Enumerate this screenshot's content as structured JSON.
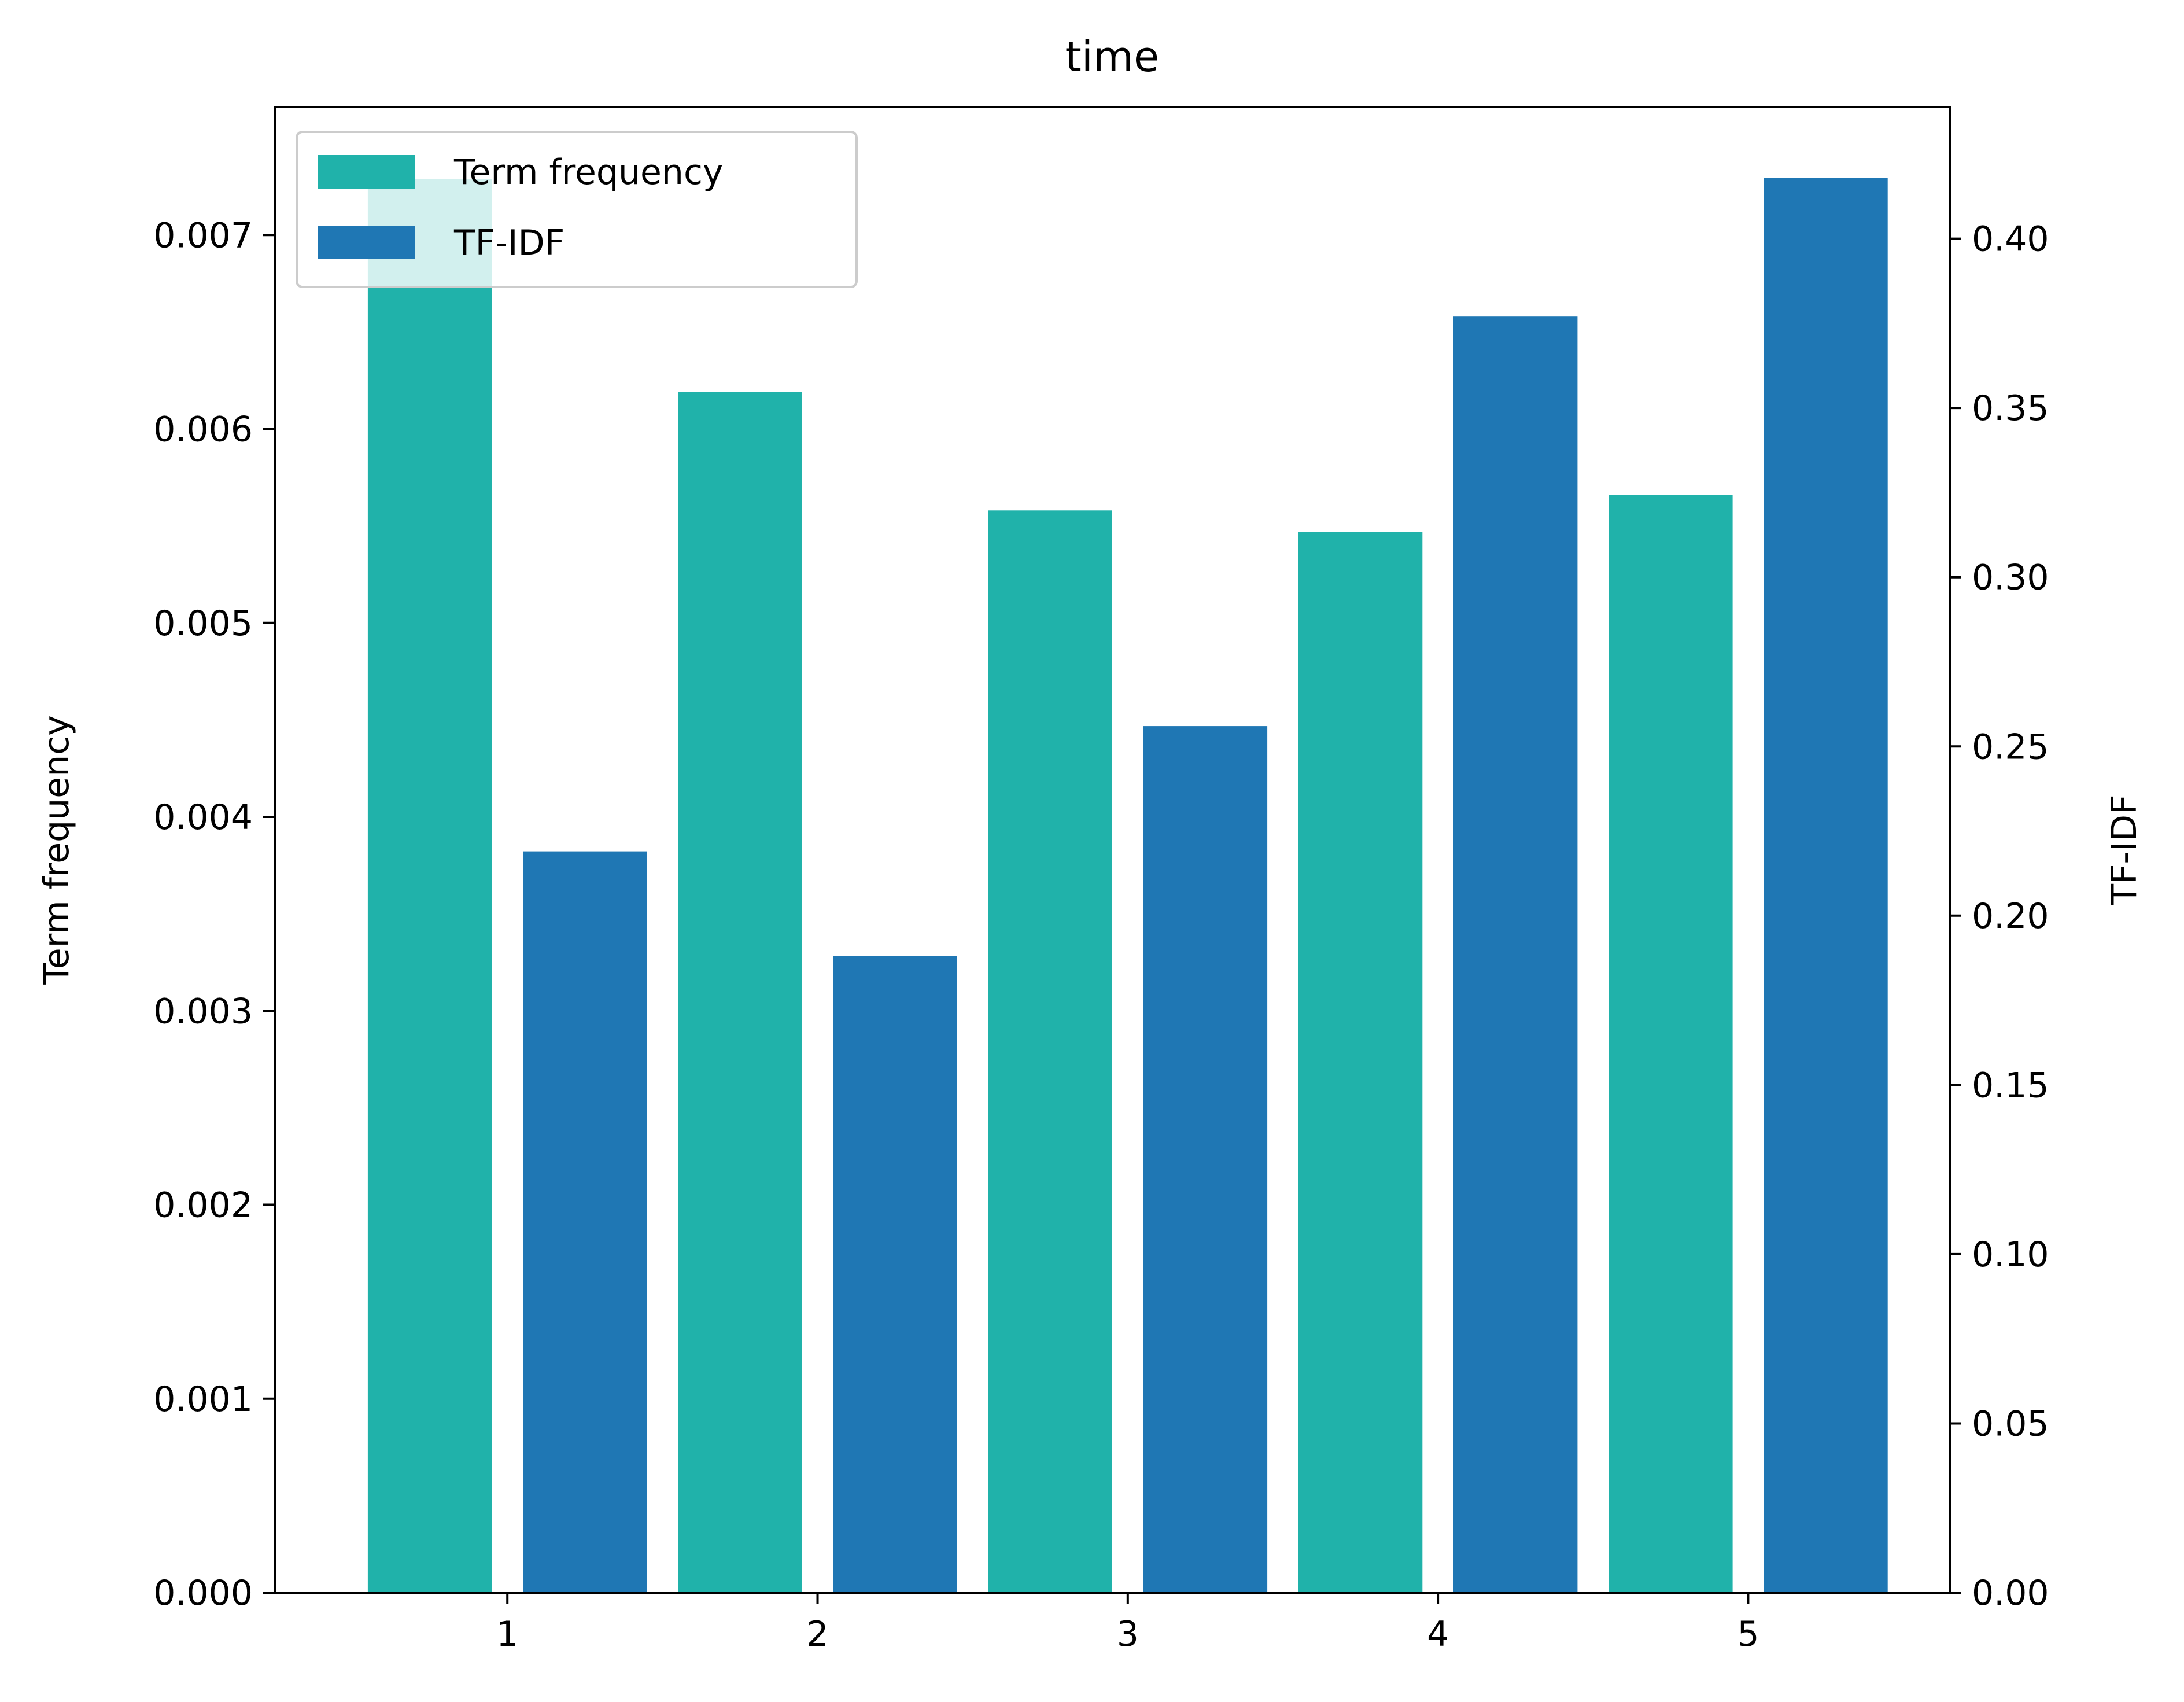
{
  "chart_data": {
    "type": "bar",
    "title": "time",
    "x": [
      1,
      2,
      3,
      4,
      5
    ],
    "xticks": [
      "1",
      "2",
      "3",
      "4",
      "5"
    ],
    "xlim": [
      0.25,
      5.65
    ],
    "series": [
      {
        "name": "Term frequency",
        "axis": "left",
        "color": "#20b2aa",
        "offset": -0.25,
        "width": 0.4,
        "values": [
          0.00729,
          0.00619,
          0.00558,
          0.00547,
          0.00566
        ]
      },
      {
        "name": "TF-IDF",
        "axis": "right",
        "color": "#1f77b4",
        "offset": 0.25,
        "width": 0.4,
        "values": [
          0.219,
          0.188,
          0.256,
          0.377,
          0.418
        ]
      }
    ],
    "y_left": {
      "label": "Term frequency",
      "ylim": [
        0,
        0.00766
      ],
      "ticks": [
        0,
        0.001,
        0.002,
        0.003,
        0.004,
        0.005,
        0.006,
        0.007
      ],
      "tick_labels": [
        "0.000",
        "0.001",
        "0.002",
        "0.003",
        "0.004",
        "0.005",
        "0.006",
        "0.007"
      ]
    },
    "y_right": {
      "label": "TF-IDF",
      "ylim": [
        0,
        0.4389
      ],
      "ticks": [
        0,
        0.05,
        0.1,
        0.15,
        0.2,
        0.25,
        0.3,
        0.35,
        0.4
      ],
      "tick_labels": [
        "0.00",
        "0.05",
        "0.10",
        "0.15",
        "0.20",
        "0.25",
        "0.30",
        "0.35",
        "0.40"
      ]
    },
    "legend": {
      "position": "top-left",
      "entries": [
        "Term frequency",
        "TF-IDF"
      ]
    },
    "grid": false
  }
}
